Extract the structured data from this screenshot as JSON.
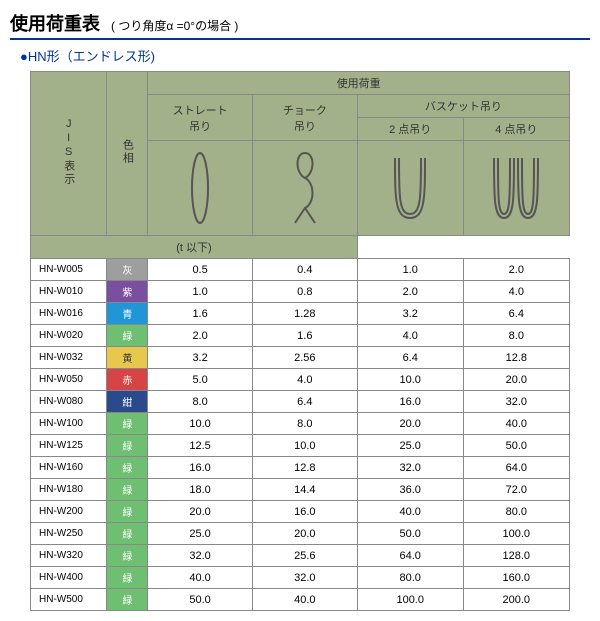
{
  "title_main": "使用荷重表",
  "title_sub": "( つり角度α =0°の場合 )",
  "subtitle": "●HN形（エンドレス形)",
  "header_usage_load": "使用荷重",
  "header_straight": "ストレート\n吊り",
  "header_choke": "チョーク\n吊り",
  "header_basket": "バスケット吊り",
  "header_2pt": "2 点吊り",
  "header_4pt": "4 点吊り",
  "header_jis": "JIS表示",
  "header_color": "色相",
  "unit_label": "(t 以下)",
  "color_labels": {
    "grey": "灰",
    "purple": "紫",
    "blue": "青",
    "green": "緑",
    "yellow": "黄",
    "red": "赤",
    "navy": "紺"
  },
  "color_hex": {
    "grey": "#9e9e9e",
    "purple": "#7b4fa0",
    "blue": "#2196d6",
    "green": "#6fbf73",
    "yellow": "#e6c84c",
    "red": "#d64545",
    "navy": "#2b4a8b"
  },
  "rows": [
    {
      "jis": "HN-W005",
      "c": "grey",
      "v": [
        "0.5",
        "0.4",
        "1.0",
        "2.0"
      ]
    },
    {
      "jis": "HN-W010",
      "c": "purple",
      "v": [
        "1.0",
        "0.8",
        "2.0",
        "4.0"
      ]
    },
    {
      "jis": "HN-W016",
      "c": "blue",
      "v": [
        "1.6",
        "1.28",
        "3.2",
        "6.4"
      ]
    },
    {
      "jis": "HN-W020",
      "c": "green",
      "v": [
        "2.0",
        "1.6",
        "4.0",
        "8.0"
      ]
    },
    {
      "jis": "HN-W032",
      "c": "yellow",
      "v": [
        "3.2",
        "2.56",
        "6.4",
        "12.8"
      ]
    },
    {
      "jis": "HN-W050",
      "c": "red",
      "v": [
        "5.0",
        "4.0",
        "10.0",
        "20.0"
      ]
    },
    {
      "jis": "HN-W080",
      "c": "navy",
      "v": [
        "8.0",
        "6.4",
        "16.0",
        "32.0"
      ]
    },
    {
      "jis": "HN-W100",
      "c": "green",
      "v": [
        "10.0",
        "8.0",
        "20.0",
        "40.0"
      ]
    },
    {
      "jis": "HN-W125",
      "c": "green",
      "v": [
        "12.5",
        "10.0",
        "25.0",
        "50.0"
      ]
    },
    {
      "jis": "HN-W160",
      "c": "green",
      "v": [
        "16.0",
        "12.8",
        "32.0",
        "64.0"
      ]
    },
    {
      "jis": "HN-W180",
      "c": "green",
      "v": [
        "18.0",
        "14.4",
        "36.0",
        "72.0"
      ]
    },
    {
      "jis": "HN-W200",
      "c": "green",
      "v": [
        "20.0",
        "16.0",
        "40.0",
        "80.0"
      ]
    },
    {
      "jis": "HN-W250",
      "c": "green",
      "v": [
        "25.0",
        "20.0",
        "50.0",
        "100.0"
      ]
    },
    {
      "jis": "HN-W320",
      "c": "green",
      "v": [
        "32.0",
        "25.6",
        "64.0",
        "128.0"
      ]
    },
    {
      "jis": "HN-W400",
      "c": "green",
      "v": [
        "40.0",
        "32.0",
        "80.0",
        "160.0"
      ]
    },
    {
      "jis": "HN-W500",
      "c": "green",
      "v": [
        "50.0",
        "40.0",
        "100.0",
        "200.0"
      ]
    }
  ]
}
